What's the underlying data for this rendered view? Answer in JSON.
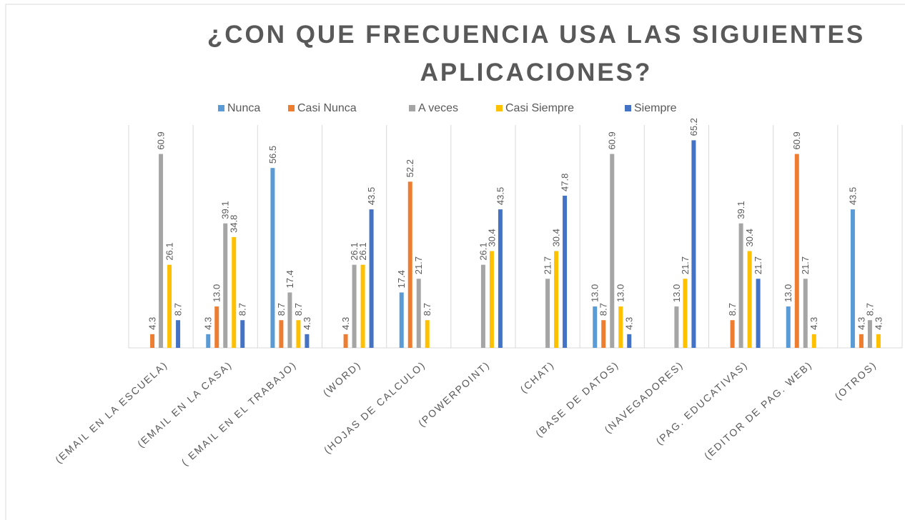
{
  "chart_data": {
    "type": "bar",
    "title": "¿CON QUE FRECUENCIA USA LAS SIGUIENTES APLICACIONES?",
    "categories": [
      "(EMAIL EN LA ESCUELA)",
      "(EMAIL EN LA CASA)",
      "( EMAIL EN EL TRABAJO)",
      "(WORD)",
      "(HOJAS DE CALCULO)",
      "(POWERPOINT)",
      "(CHAT)",
      "(BASE DE DATOS)",
      "(NAVEGADORES)",
      "(PAG. EDUCATIVAS)",
      "(EDITOR DE PAG. WEB)",
      "(OTROS)"
    ],
    "series": [
      {
        "name": "Nunca",
        "color": "#5b9bd5",
        "values": [
          null,
          4.3,
          56.5,
          null,
          17.4,
          null,
          null,
          13.0,
          null,
          null,
          13.0,
          43.5
        ],
        "value_labels": [
          null,
          "4.3",
          "56.5",
          null,
          "17.4",
          null,
          null,
          "13.0",
          null,
          null,
          "13.0",
          "43.5"
        ]
      },
      {
        "name": "Casi Nunca",
        "color": "#ed7d31",
        "values": [
          4.3,
          13.0,
          8.7,
          4.3,
          52.2,
          null,
          null,
          8.7,
          null,
          8.7,
          60.9,
          4.3
        ],
        "value_labels": [
          "4.3",
          "13.0",
          "8.7",
          "4.3",
          "52.2",
          null,
          null,
          "8.7",
          null,
          "8.7",
          "60.9",
          "4.3"
        ]
      },
      {
        "name": "A veces",
        "color": "#a5a5a5",
        "values": [
          60.9,
          39.1,
          17.4,
          26.1,
          21.7,
          26.1,
          21.7,
          60.9,
          13.0,
          39.1,
          21.7,
          8.7
        ],
        "value_labels": [
          "60.9",
          "39.1",
          "17.4",
          "26.1",
          "21.7",
          "26.1",
          "21.7",
          "60.9",
          "13.0",
          "39.1",
          "21.7",
          "8.7"
        ]
      },
      {
        "name": "Casi Siempre",
        "color": "#ffc000",
        "values": [
          26.1,
          34.8,
          8.7,
          26.1,
          8.7,
          30.4,
          30.4,
          13.0,
          21.7,
          30.4,
          4.3,
          4.3
        ],
        "value_labels": [
          "26.1",
          "34.8",
          "8.7",
          "26.1",
          "8.7",
          "30.4",
          "30.4",
          "13.0",
          "21.7",
          "30.4",
          "4.3",
          "4.3"
        ]
      },
      {
        "name": "Siempre",
        "color": "#4472c4",
        "values": [
          8.7,
          8.7,
          4.3,
          43.5,
          null,
          43.5,
          47.8,
          4.3,
          65.2,
          21.7,
          null,
          null
        ],
        "value_labels": [
          "8.7",
          "8.7",
          "4.3",
          "43.5",
          null,
          "43.5",
          "47.8",
          "4.3",
          "65.2",
          "21.7",
          null,
          null
        ]
      }
    ],
    "ylim": [
      0,
      70
    ]
  }
}
